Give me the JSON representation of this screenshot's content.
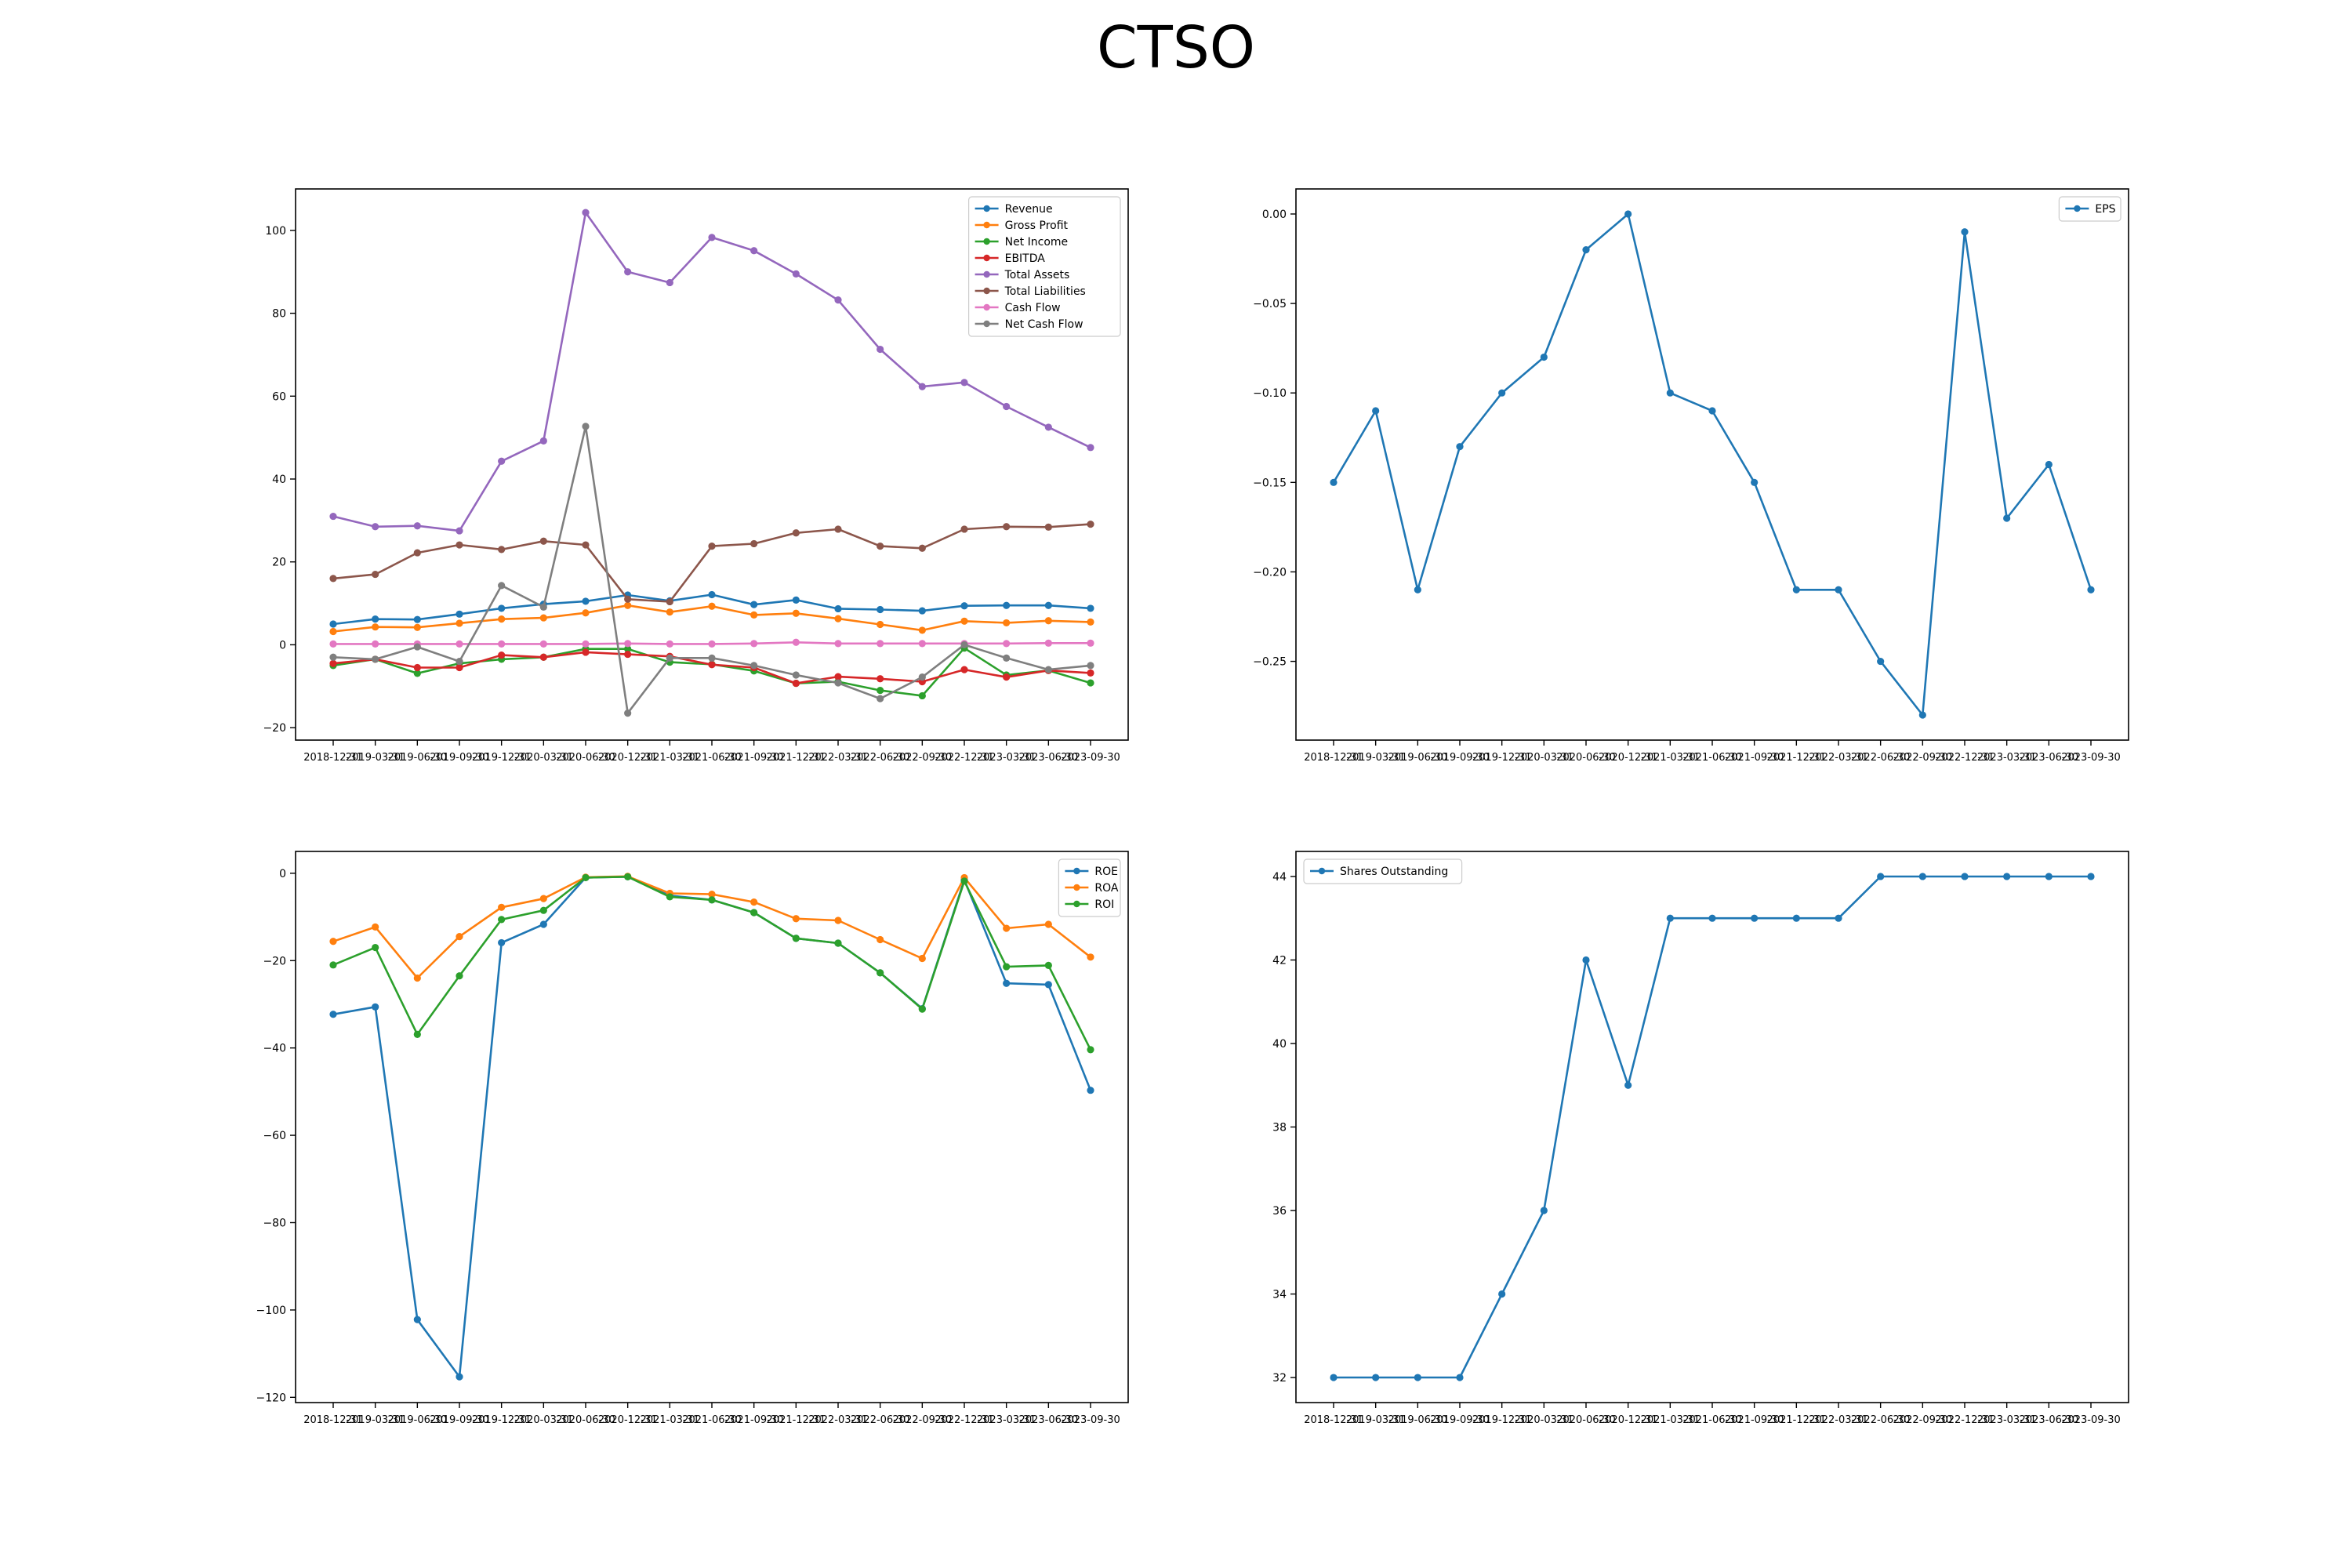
{
  "figure": {
    "title": "CTSO"
  },
  "dates": [
    "2018-12-31",
    "2019-03-31",
    "2019-06-30",
    "2019-09-30",
    "2019-12-31",
    "2020-03-31",
    "2020-06-30",
    "2020-12-31",
    "2021-03-31",
    "2021-06-30",
    "2021-09-30",
    "2021-12-31",
    "2022-03-31",
    "2022-06-30",
    "2022-09-30",
    "2022-12-31",
    "2023-03-31",
    "2023-06-30",
    "2023-09-30"
  ],
  "chart_data": [
    {
      "type": "line",
      "title": "",
      "xlabel": "",
      "ylabel": "",
      "ylim": [
        -23,
        110
      ],
      "yticks": [
        -20,
        0,
        20,
        40,
        60,
        80,
        100
      ],
      "legend_position": "top-right",
      "grid": false,
      "series": [
        {
          "name": "Revenue",
          "color": "#1f77b4",
          "values": [
            5.0,
            6.2,
            6.1,
            7.4,
            8.8,
            9.8,
            10.5,
            12.0,
            10.6,
            12.1,
            9.7,
            10.8,
            8.7,
            8.5,
            8.2,
            9.4,
            9.5,
            9.5,
            8.8
          ]
        },
        {
          "name": "Gross Profit",
          "color": "#ff7f0e",
          "values": [
            3.2,
            4.3,
            4.2,
            5.2,
            6.2,
            6.5,
            7.7,
            9.5,
            7.9,
            9.3,
            7.2,
            7.6,
            6.3,
            4.9,
            3.5,
            5.7,
            5.3,
            5.8,
            5.5
          ]
        },
        {
          "name": "Net Income",
          "color": "#2ca02c",
          "values": [
            -5.0,
            -3.5,
            -6.9,
            -4.5,
            -3.5,
            -3.0,
            -1.0,
            -1.0,
            -4.2,
            -4.7,
            -6.3,
            -9.3,
            -8.9,
            -11.0,
            -12.3,
            -0.8,
            -7.3,
            -6.2,
            -9.2
          ]
        },
        {
          "name": "EBITDA",
          "color": "#d62728",
          "values": [
            -4.5,
            -3.5,
            -5.5,
            -5.5,
            -2.5,
            -3.0,
            -1.8,
            -2.3,
            -2.8,
            -4.8,
            -5.5,
            -9.3,
            -7.7,
            -8.2,
            -8.9,
            -6.0,
            -7.8,
            -6.2,
            -6.8
          ]
        },
        {
          "name": "Total Assets",
          "color": "#9467bd",
          "values": [
            31.0,
            28.5,
            28.7,
            27.5,
            44.3,
            49.2,
            104.3,
            90.0,
            87.4,
            98.3,
            95.1,
            89.5,
            83.2,
            71.3,
            62.3,
            63.3,
            57.5,
            52.5,
            47.6
          ]
        },
        {
          "name": "Total Liabilities",
          "color": "#8c564b",
          "values": [
            16.0,
            17.0,
            22.2,
            24.1,
            23.0,
            25.0,
            24.1,
            11.0,
            10.4,
            23.8,
            24.4,
            27.0,
            27.9,
            23.8,
            23.3,
            27.9,
            28.5,
            28.4,
            29.1
          ]
        },
        {
          "name": "Cash Flow",
          "color": "#e377c2",
          "values": [
            0.2,
            0.2,
            0.2,
            0.2,
            0.2,
            0.2,
            0.2,
            0.3,
            0.2,
            0.2,
            0.3,
            0.6,
            0.3,
            0.3,
            0.3,
            0.3,
            0.3,
            0.4,
            0.4
          ]
        },
        {
          "name": "Net Cash Flow",
          "color": "#7f7f7f",
          "values": [
            -3.0,
            -3.5,
            -0.5,
            -4.0,
            14.3,
            9.1,
            52.7,
            -16.5,
            -3.2,
            -3.2,
            -5.0,
            -7.3,
            -9.2,
            -13.0,
            -7.8,
            0.0,
            -3.2,
            -6.0,
            -5.0
          ]
        }
      ]
    },
    {
      "type": "line",
      "title": "",
      "xlabel": "",
      "ylabel": "",
      "ylim": [
        -0.294,
        0.014
      ],
      "yticks": [
        -0.25,
        -0.2,
        -0.15,
        -0.1,
        -0.05,
        0.0
      ],
      "ytick_labels": [
        "−0.25",
        "−0.20",
        "−0.15",
        "−0.10",
        "−0.05",
        "0.00"
      ],
      "legend_position": "top-right",
      "grid": false,
      "series": [
        {
          "name": "EPS",
          "color": "#1f77b4",
          "values": [
            -0.15,
            -0.11,
            -0.21,
            -0.13,
            -0.1,
            -0.08,
            -0.02,
            0.0,
            -0.1,
            -0.11,
            -0.15,
            -0.21,
            -0.21,
            -0.25,
            -0.28,
            -0.01,
            -0.17,
            -0.14,
            -0.21
          ]
        }
      ]
    },
    {
      "type": "line",
      "title": "",
      "xlabel": "",
      "ylabel": "",
      "ylim": [
        -121.2,
        5.0
      ],
      "yticks": [
        -120,
        -100,
        -80,
        -60,
        -40,
        -20,
        0
      ],
      "legend_position": "top-right",
      "grid": false,
      "series": [
        {
          "name": "ROE",
          "color": "#1f77b4",
          "values": [
            -32.3,
            -30.6,
            -102.2,
            -115.3,
            -15.9,
            -11.7,
            -1.0,
            -0.8,
            -5.1,
            -6.1,
            -9.0,
            -14.9,
            -16.0,
            -22.8,
            -31.0,
            -1.5,
            -25.2,
            -25.5,
            -49.7
          ]
        },
        {
          "name": "ROA",
          "color": "#ff7f0e",
          "values": [
            -15.6,
            -12.3,
            -24.0,
            -14.5,
            -7.8,
            -5.8,
            -0.9,
            -0.7,
            -4.6,
            -4.8,
            -6.6,
            -10.4,
            -10.8,
            -15.2,
            -19.5,
            -1.0,
            -12.6,
            -11.7,
            -19.2
          ]
        },
        {
          "name": "ROI",
          "color": "#2ca02c",
          "values": [
            -21.0,
            -17.0,
            -36.9,
            -23.5,
            -10.6,
            -8.5,
            -1.0,
            -0.8,
            -5.4,
            -6.1,
            -9.0,
            -14.9,
            -16.0,
            -22.8,
            -31.1,
            -1.8,
            -21.4,
            -21.1,
            -40.4
          ]
        }
      ]
    },
    {
      "type": "line",
      "title": "",
      "xlabel": "",
      "ylabel": "",
      "ylim": [
        31.4,
        44.6
      ],
      "yticks": [
        32,
        34,
        36,
        38,
        40,
        42,
        44
      ],
      "legend_position": "top-left",
      "grid": false,
      "series": [
        {
          "name": "Shares Outstanding",
          "color": "#1f77b4",
          "values": [
            32,
            32,
            32,
            32,
            34,
            36,
            42,
            39,
            43,
            43,
            43,
            43,
            43,
            44,
            44,
            44,
            44,
            44,
            44
          ]
        }
      ]
    }
  ]
}
